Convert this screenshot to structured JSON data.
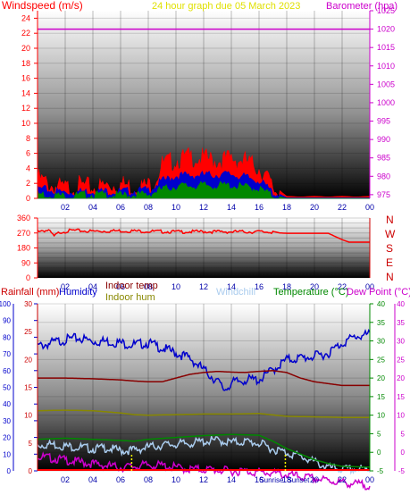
{
  "header": {
    "title": "24 hour graph due  05 March 2023",
    "left_label": "Windspeed (m/s)",
    "right_label": "Barometer (hpa)"
  },
  "bottom_header": {
    "rainfall": "Rainfall (mm)",
    "humidity": "Humidity",
    "indoor_temp": "Indoor temp",
    "indoor_hum": "Indoor hum",
    "windchill": "Windchill",
    "temperature": "Temperature (°C)",
    "dewpoint": "Dew Point (°C)"
  },
  "time_ticks": [
    "02",
    "04",
    "06",
    "08",
    "10",
    "12",
    "14",
    "16",
    "18",
    "20",
    "22",
    "00"
  ],
  "sun_labels": {
    "rise": "Sunrise",
    "set": "Sunset"
  },
  "compass": [
    "N",
    "W",
    "S",
    "E",
    "N"
  ],
  "colors": {
    "title": "#e0e000",
    "wind_axis": "#ff0000",
    "baro_axis": "#cc00cc",
    "humidity_axis": "#0000cc",
    "rain_axis": "#cc0000",
    "temp_axis": "#008800",
    "dew_axis": "#cc00cc",
    "indoor_temp": "#880000",
    "indoor_hum": "#888800",
    "windchill": "#aaccee"
  },
  "chart_data": [
    {
      "type": "area",
      "name": "wind and pressure",
      "x_range_hours": [
        0,
        24
      ],
      "y_left_ticks": [
        0,
        2,
        4,
        6,
        8,
        10,
        12,
        14,
        16,
        18,
        20,
        22,
        24
      ],
      "y_left_range": [
        0,
        25
      ],
      "y_right_ticks": [
        975,
        980,
        985,
        990,
        995,
        1000,
        1005,
        1010,
        1015,
        1020,
        1025
      ],
      "y_right_range": [
        974,
        1025
      ],
      "series": [
        {
          "name": "",
          "color": "#ff0000",
          "x": [
            0,
            1,
            2,
            3,
            4,
            5,
            6,
            7,
            8,
            8.5,
            9,
            10,
            11,
            12,
            13,
            14,
            15,
            16,
            16.5,
            17,
            18,
            19,
            20,
            21,
            22,
            23,
            24
          ],
          "values": [
            3.2,
            2.2,
            1.8,
            2.2,
            1.9,
            2.2,
            2.4,
            2.0,
            2.2,
            3.0,
            5.0,
            5.6,
            6.0,
            5.8,
            5.5,
            5.8,
            5.5,
            4.5,
            3.5,
            1.8,
            0.3,
            0.2,
            0.3,
            0.2,
            0.3,
            0.2,
            0.3
          ]
        },
        {
          "name": "",
          "color": "#0000cc",
          "x": [
            0,
            2,
            4,
            6,
            8,
            9,
            10,
            12,
            14,
            16,
            17,
            18,
            24
          ],
          "values": [
            1.5,
            1.0,
            1.2,
            1.1,
            1.3,
            2.5,
            3.2,
            3.3,
            3.4,
            2.6,
            1.0,
            0.1,
            0.1
          ]
        },
        {
          "name": "",
          "color": "#008800",
          "x": [
            0,
            2,
            4,
            6,
            8,
            9,
            10,
            12,
            14,
            16,
            17,
            18,
            24
          ],
          "values": [
            0.8,
            0.5,
            0.7,
            0.6,
            0.7,
            1.4,
            1.8,
            1.9,
            1.9,
            1.5,
            0.5,
            0.0,
            0.0
          ]
        },
        {
          "name": "",
          "color": "#cc00cc",
          "axis": "right",
          "x": [
            0,
            24
          ],
          "values": [
            1020,
            1020
          ]
        }
      ]
    },
    {
      "type": "line",
      "name": "wind direction",
      "x_range_hours": [
        0,
        24
      ],
      "y_ticks": [
        0,
        30,
        60,
        90,
        120,
        150,
        180,
        210,
        240,
        270,
        300,
        330,
        360
      ],
      "y_range": [
        0,
        360
      ],
      "series": [
        {
          "name": "",
          "color": "#ff0000",
          "x": [
            0,
            0.8,
            1.2,
            1.6,
            2.5,
            4,
            6,
            8,
            10,
            12,
            14,
            16,
            17,
            17.5,
            18,
            19,
            20,
            21,
            22,
            22.5,
            23,
            24
          ],
          "values": [
            290,
            290,
            255,
            280,
            290,
            285,
            288,
            285,
            282,
            283,
            282,
            282,
            280,
            270,
            268,
            268,
            268,
            268,
            230,
            215,
            215,
            215
          ]
        }
      ]
    },
    {
      "type": "line",
      "name": "temperature and humidity",
      "x_range_hours": [
        0,
        24
      ],
      "humidity_ticks": [
        0,
        10,
        20,
        30,
        40,
        50,
        60,
        70,
        80,
        90,
        100
      ],
      "humidity_range": [
        0,
        100
      ],
      "rain_ticks": [
        0,
        5,
        10,
        15,
        20,
        25,
        30
      ],
      "rain_range": [
        0,
        30
      ],
      "temp_ticks": [
        -5,
        0,
        5,
        10,
        15,
        20,
        25,
        30,
        35,
        40
      ],
      "temp_range": [
        -5,
        40
      ],
      "series": [
        {
          "name": "Humidity",
          "color": "#0000cc",
          "x": [
            0,
            1,
            2,
            3,
            4,
            5,
            6,
            7,
            8,
            9,
            10,
            11,
            12,
            13,
            13.5,
            14,
            15,
            16,
            17,
            18,
            19,
            20,
            21,
            22,
            23,
            24
          ],
          "values": [
            76,
            78,
            80,
            81,
            79,
            79,
            78,
            77,
            78,
            75,
            72,
            69,
            62,
            55,
            50,
            54,
            56,
            56,
            62,
            68,
            69,
            70,
            72,
            78,
            82,
            83
          ]
        },
        {
          "name": "Indoor temp",
          "color": "#880000",
          "x": [
            0,
            2,
            4,
            6,
            7,
            8,
            9,
            10,
            11,
            12,
            13,
            14,
            15,
            16,
            17,
            18,
            19,
            20,
            21,
            22,
            23,
            24
          ],
          "values": [
            20,
            20,
            19.8,
            19.5,
            19.2,
            19,
            19,
            20,
            21,
            21.5,
            21.8,
            21.6,
            21.5,
            21.8,
            22,
            21.5,
            20,
            19,
            18.5,
            18,
            18,
            18
          ]
        },
        {
          "name": "Indoor hum",
          "color": "#888800",
          "x": [
            0,
            2,
            4,
            5,
            6,
            7,
            8,
            10,
            12,
            14,
            16,
            18,
            20,
            22,
            24
          ],
          "values": [
            10.8,
            10.9,
            10.8,
            10.6,
            10.4,
            10.1,
            10.0,
            10.1,
            10.2,
            10.2,
            10.3,
            9.8,
            9.7,
            9.6,
            9.6
          ]
        },
        {
          "name": "Windchill",
          "color": "#aaccee",
          "x": [
            0,
            1,
            2,
            3,
            4,
            5,
            6,
            7,
            8,
            9,
            10,
            11,
            12,
            13,
            14,
            15,
            16,
            17,
            18,
            19,
            20,
            21,
            22,
            23,
            24
          ],
          "values": [
            2.5,
            2.8,
            2.2,
            2.0,
            1.5,
            1.8,
            1.0,
            1.2,
            2.0,
            2.5,
            2.8,
            3.0,
            3.5,
            3.8,
            3.2,
            3.5,
            3.0,
            1.5,
            0.5,
            -0.5,
            -2.0,
            -3.5,
            -4.0,
            -4.0,
            -4.0
          ]
        },
        {
          "name": "Temperature",
          "color": "#008800",
          "x": [
            0,
            2,
            4,
            6,
            7,
            8,
            10,
            12,
            14,
            16,
            17,
            18,
            19,
            20,
            21,
            22,
            23,
            24
          ],
          "values": [
            3.5,
            3.8,
            3.5,
            3.2,
            3.0,
            3.5,
            4.0,
            4.5,
            4.8,
            4.6,
            3.0,
            1.0,
            -0.5,
            -2.0,
            -3.0,
            -3.8,
            -3.9,
            -4.0
          ]
        },
        {
          "name": "Dew Point",
          "color": "#cc00cc",
          "x": [
            0,
            1,
            2,
            3,
            4,
            5,
            6,
            7,
            8,
            9,
            10,
            11,
            12,
            13,
            14,
            15,
            16,
            17,
            18,
            19,
            20,
            21,
            22,
            23,
            24
          ],
          "values": [
            -0.5,
            -1.0,
            -1.5,
            -2.0,
            -2.5,
            -3.0,
            -3.5,
            -3.2,
            -2.8,
            -3.0,
            -3.5,
            -4.0,
            -4.0,
            -4.2,
            -4.5,
            -4.5,
            -4.8,
            -5.0,
            -5.5,
            -6.0,
            -6.5,
            -7.0,
            -7.5,
            -8.0,
            -8.3
          ]
        },
        {
          "name": "Rainfall",
          "color": "#ff0000",
          "x": [
            0,
            24
          ],
          "values": [
            0,
            0
          ]
        }
      ],
      "sunrise_hour": 6.8,
      "sunset_hour": 17.9
    }
  ]
}
